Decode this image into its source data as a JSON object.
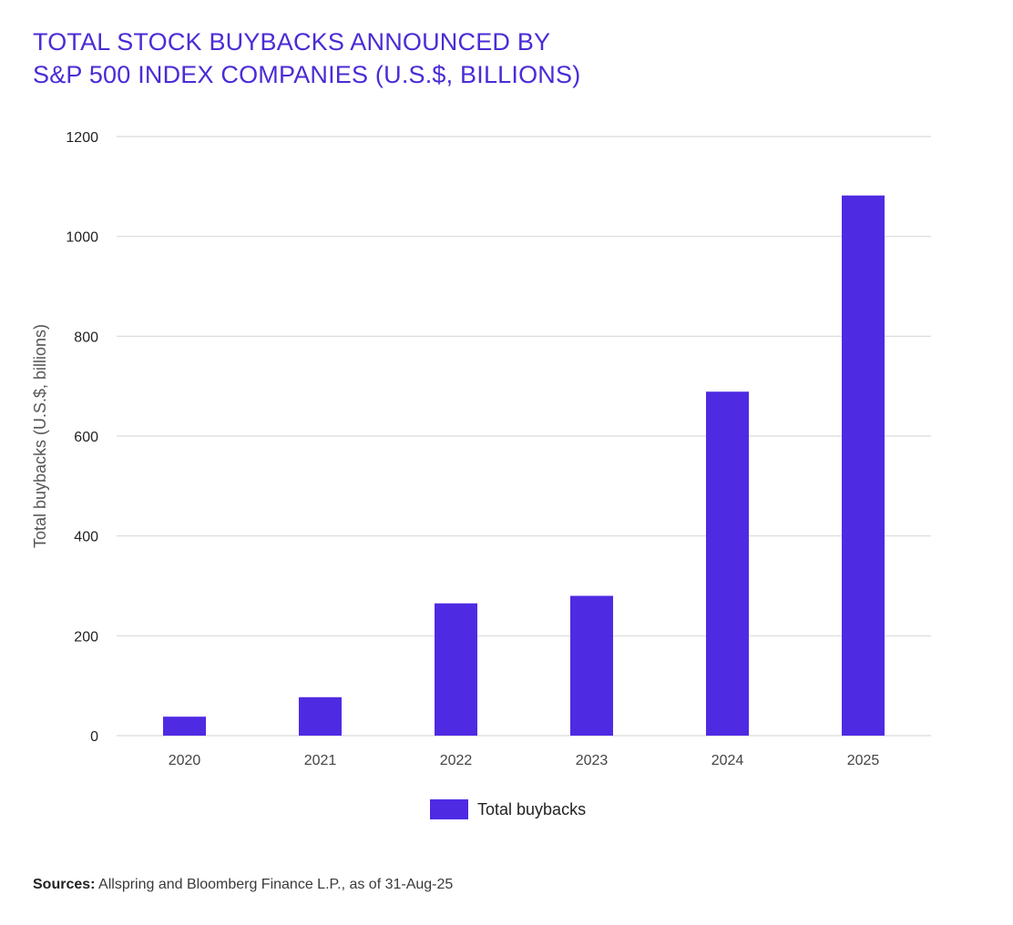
{
  "title_lines": [
    "TOTAL STOCK BUYBACKS ANNOUNCED BY",
    "S&P 500 INDEX COMPANIES (U.S.$, BILLIONS)"
  ],
  "colors": {
    "title": "#4b2bd6",
    "bar": "#4f2ae3",
    "grid": "#d9d9d9",
    "text": "#222222"
  },
  "chart_data": {
    "type": "bar",
    "title": "TOTAL STOCK BUYBACKS ANNOUNCED BY S&P 500 INDEX COMPANIES (U.S.$, BILLIONS)",
    "categories": [
      "2020",
      "2021",
      "2022",
      "2023",
      "2024",
      "2025"
    ],
    "series": [
      {
        "name": "Total buybacks",
        "values": [
          38,
          77,
          265,
          280,
          689,
          1082
        ]
      }
    ],
    "xlabel": "",
    "ylabel": "Total buybacks (U.S.$, billions)",
    "ylim": [
      0,
      1200
    ],
    "yticks": [
      0,
      200,
      400,
      600,
      800,
      1000,
      1200
    ],
    "grid": true,
    "legend": "bottom-center"
  },
  "source": {
    "label": "Sources:",
    "text": " Allspring and Bloomberg Finance L.P., as of 31-Aug-25"
  }
}
